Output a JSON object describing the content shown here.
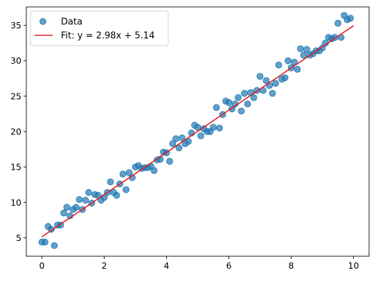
{
  "chart_data": {
    "type": "scatter",
    "title": "",
    "xlabel": "",
    "ylabel": "",
    "xlim": [
      -0.5,
      10.5
    ],
    "ylim": [
      2.4,
      37.6
    ],
    "xticks": [
      0,
      2,
      4,
      6,
      8,
      10
    ],
    "yticks": [
      5,
      10,
      15,
      20,
      25,
      30,
      35
    ],
    "tick_labels_x": [
      "0",
      "2",
      "4",
      "6",
      "8",
      "10"
    ],
    "tick_labels_y": [
      "5",
      "10",
      "15",
      "20",
      "25",
      "30",
      "35"
    ],
    "grid": false,
    "legend_position": "top-left",
    "series": [
      {
        "name": "Data",
        "kind": "scatter",
        "color": "#1f77b4",
        "points": [
          [
            0.0,
            4.4
          ],
          [
            0.1,
            4.4
          ],
          [
            0.2,
            6.6
          ],
          [
            0.3,
            6.2
          ],
          [
            0.4,
            3.9
          ],
          [
            0.5,
            6.8
          ],
          [
            0.6,
            6.8
          ],
          [
            0.7,
            8.5
          ],
          [
            0.8,
            9.3
          ],
          [
            0.9,
            8.1
          ],
          [
            1.0,
            9.0
          ],
          [
            1.1,
            9.3
          ],
          [
            1.2,
            10.4
          ],
          [
            1.3,
            9.0
          ],
          [
            1.4,
            10.3
          ],
          [
            1.5,
            11.4
          ],
          [
            1.6,
            9.9
          ],
          [
            1.7,
            11.1
          ],
          [
            1.8,
            11.0
          ],
          [
            1.9,
            10.3
          ],
          [
            2.0,
            10.7
          ],
          [
            2.1,
            11.4
          ],
          [
            2.2,
            12.9
          ],
          [
            2.3,
            11.4
          ],
          [
            2.4,
            11.0
          ],
          [
            2.5,
            12.6
          ],
          [
            2.6,
            14.0
          ],
          [
            2.7,
            11.8
          ],
          [
            2.8,
            14.2
          ],
          [
            2.9,
            13.5
          ],
          [
            3.0,
            15.0
          ],
          [
            3.1,
            15.2
          ],
          [
            3.2,
            14.8
          ],
          [
            3.3,
            14.9
          ],
          [
            3.4,
            14.9
          ],
          [
            3.5,
            15.1
          ],
          [
            3.6,
            14.5
          ],
          [
            3.7,
            16.0
          ],
          [
            3.8,
            16.1
          ],
          [
            3.9,
            17.1
          ],
          [
            4.0,
            17.0
          ],
          [
            4.1,
            15.8
          ],
          [
            4.2,
            18.3
          ],
          [
            4.3,
            19.0
          ],
          [
            4.4,
            17.7
          ],
          [
            4.5,
            19.1
          ],
          [
            4.6,
            18.3
          ],
          [
            4.7,
            18.6
          ],
          [
            4.8,
            19.8
          ],
          [
            4.9,
            20.9
          ],
          [
            5.0,
            20.6
          ],
          [
            5.1,
            19.4
          ],
          [
            5.2,
            20.4
          ],
          [
            5.3,
            20.0
          ],
          [
            5.4,
            20.0
          ],
          [
            5.5,
            20.6
          ],
          [
            5.6,
            23.4
          ],
          [
            5.7,
            20.5
          ],
          [
            5.8,
            22.4
          ],
          [
            5.9,
            24.3
          ],
          [
            6.0,
            24.1
          ],
          [
            6.1,
            23.2
          ],
          [
            6.2,
            23.9
          ],
          [
            6.3,
            24.8
          ],
          [
            6.4,
            22.9
          ],
          [
            6.5,
            25.4
          ],
          [
            6.6,
            23.9
          ],
          [
            6.7,
            25.5
          ],
          [
            6.8,
            24.8
          ],
          [
            6.9,
            25.8
          ],
          [
            7.0,
            27.8
          ],
          [
            7.1,
            25.8
          ],
          [
            7.2,
            27.2
          ],
          [
            7.3,
            26.5
          ],
          [
            7.4,
            25.4
          ],
          [
            7.5,
            26.8
          ],
          [
            7.6,
            29.4
          ],
          [
            7.7,
            27.4
          ],
          [
            7.8,
            27.6
          ],
          [
            7.9,
            30.0
          ],
          [
            8.0,
            29.0
          ],
          [
            8.1,
            29.8
          ],
          [
            8.2,
            28.8
          ],
          [
            8.3,
            31.7
          ],
          [
            8.4,
            30.8
          ],
          [
            8.5,
            31.6
          ],
          [
            8.6,
            30.8
          ],
          [
            8.7,
            31.0
          ],
          [
            8.8,
            31.4
          ],
          [
            8.9,
            31.4
          ],
          [
            9.0,
            31.8
          ],
          [
            9.1,
            32.5
          ],
          [
            9.2,
            33.3
          ],
          [
            9.3,
            33.1
          ],
          [
            9.4,
            33.3
          ],
          [
            9.5,
            35.3
          ],
          [
            9.6,
            33.3
          ],
          [
            9.7,
            36.4
          ],
          [
            9.8,
            35.8
          ],
          [
            9.9,
            36.0
          ]
        ]
      },
      {
        "name": "Fit: y = 2.98x + 5.14",
        "kind": "line",
        "color": "#e31a1c",
        "slope": 2.98,
        "intercept": 5.14,
        "x_range": [
          0,
          10
        ]
      }
    ]
  },
  "legend": {
    "items": [
      {
        "label": "Data",
        "marker": "circle",
        "color": "#1f77b4"
      },
      {
        "label": "Fit: y = 2.98x + 5.14",
        "marker": "line",
        "color": "#e31a1c"
      }
    ]
  }
}
